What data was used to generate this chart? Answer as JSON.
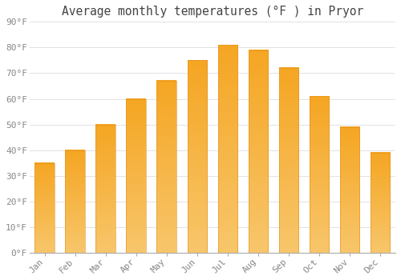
{
  "title": "Average monthly temperatures (°F ) in Pryor",
  "months": [
    "Jan",
    "Feb",
    "Mar",
    "Apr",
    "May",
    "Jun",
    "Jul",
    "Aug",
    "Sep",
    "Oct",
    "Nov",
    "Dec"
  ],
  "values": [
    35,
    40,
    50,
    60,
    67,
    75,
    81,
    79,
    72,
    61,
    49,
    39
  ],
  "bar_color_top": "#F5A623",
  "bar_color_bottom": "#F8C66B",
  "background_color": "#FFFFFF",
  "grid_color": "#DDDDDD",
  "ylim": [
    0,
    90
  ],
  "yticks": [
    0,
    10,
    20,
    30,
    40,
    50,
    60,
    70,
    80,
    90
  ],
  "ytick_labels": [
    "0°F",
    "10°F",
    "20°F",
    "30°F",
    "40°F",
    "50°F",
    "60°F",
    "70°F",
    "80°F",
    "90°F"
  ],
  "title_fontsize": 10.5,
  "tick_fontsize": 8,
  "tick_color": "#888888",
  "font_family": "monospace",
  "bar_width": 0.65
}
